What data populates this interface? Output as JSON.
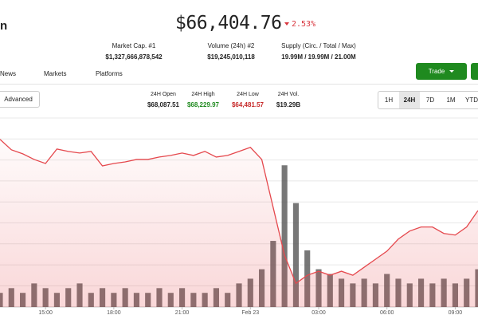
{
  "header": {
    "logo_fragment": "n",
    "price": "$66,404.76",
    "change": "2.53%"
  },
  "stats": [
    {
      "label": "Market Cap. #1",
      "value": "$1,327,666,878,542"
    },
    {
      "label": "Volume (24h) #2",
      "value": "$19,245,010,118"
    },
    {
      "label": "Supply (Circ. / Total / Max)",
      "value": "19.99M / 19.99M / 21.00M"
    }
  ],
  "tabs": [
    "News",
    "Markets",
    "Platforms"
  ],
  "trade_button": "Trade",
  "advanced_button": "Advanced",
  "ohlc": [
    {
      "label": "24H Open",
      "value": "$68,087.51"
    },
    {
      "label": "24H High",
      "value": "$68,229.97"
    },
    {
      "label": "24H Low",
      "value": "$64,481.57"
    },
    {
      "label": "24H Vol.",
      "value": "$19.29B"
    }
  ],
  "ranges": [
    "1H",
    "24H",
    "7D",
    "1M",
    "YTD"
  ],
  "active_range": 1,
  "chart_data": {
    "type": "area",
    "color": "#e5484d",
    "values": [
      68170,
      67910,
      67810,
      67670,
      67570,
      67930,
      67870,
      67830,
      67870,
      67510,
      67570,
      67610,
      67670,
      67670,
      67730,
      67770,
      67830,
      67770,
      67870,
      67730,
      67770,
      67870,
      67970,
      67670,
      66480,
      65290,
      64590,
      64790,
      64890,
      64790,
      64890,
      64790,
      64990,
      65190,
      65390,
      65690,
      65890,
      65990,
      65990,
      65830,
      65790,
      65990,
      66400
    ],
    "ylim": [
      64000,
      68700
    ],
    "xlim": [
      0,
      42
    ],
    "xticks": [
      {
        "value": 4,
        "label": "15:00"
      },
      {
        "value": 10,
        "label": "18:00"
      },
      {
        "value": 16,
        "label": "21:00"
      },
      {
        "value": 22,
        "label": "Feb 23"
      },
      {
        "value": 28,
        "label": "03:00"
      },
      {
        "value": 34,
        "label": "06:00"
      },
      {
        "value": 40,
        "label": "09:00"
      }
    ],
    "volume": [
      3,
      4,
      3,
      5,
      4,
      3,
      4,
      5,
      3,
      4,
      3,
      4,
      3,
      3,
      4,
      3,
      4,
      3,
      3,
      4,
      3,
      5,
      6,
      8,
      14,
      30,
      22,
      12,
      8,
      7,
      6,
      5,
      6,
      5,
      7,
      6,
      5,
      6,
      5,
      6,
      5,
      6,
      8
    ],
    "volume_color": "#555555",
    "vlim": [
      0,
      40
    ]
  }
}
